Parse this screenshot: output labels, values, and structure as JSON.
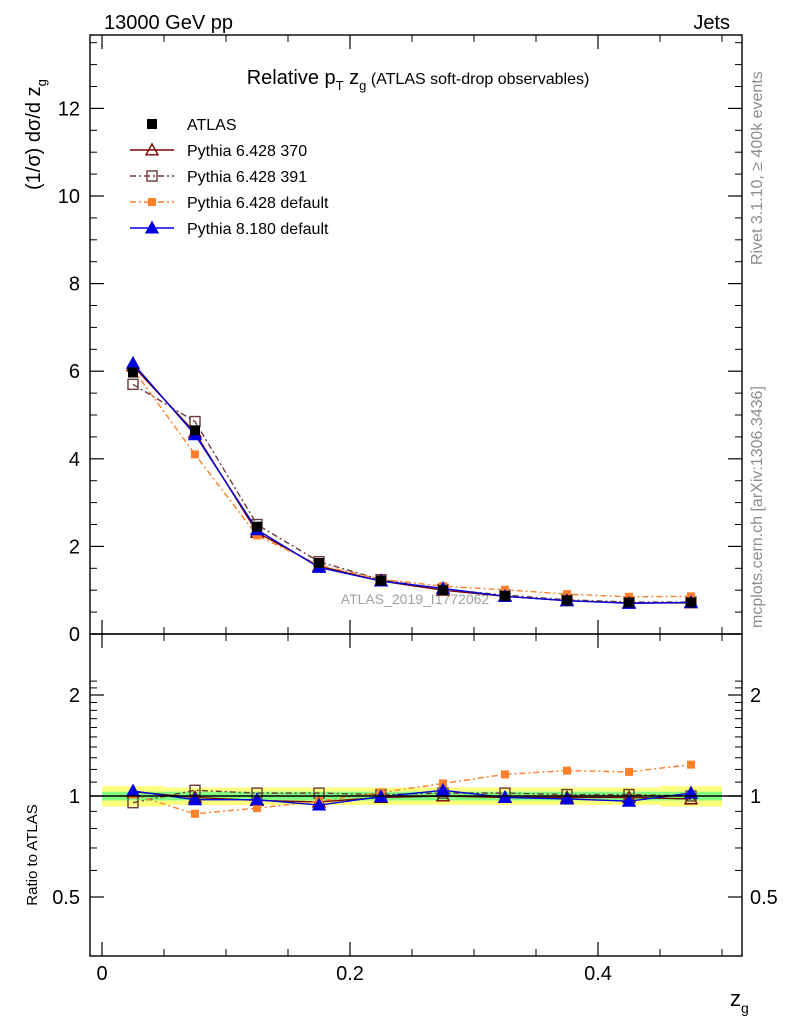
{
  "header": {
    "energy_label": "13000 GeV pp",
    "process_label": "Jets"
  },
  "side_text": {
    "rivet": "Rivet 3.1.10, ≥ 400k events",
    "mcplots": "mcplots.cern.ch [arXiv:1306.3436]"
  },
  "chart_data": {
    "type": "line",
    "title": "Relative pT zg (ATLAS soft-drop observables)",
    "title_parts": {
      "main": "Relative p",
      "sub_T": "T",
      "zg_z": " z",
      "zg_sub": "g",
      "tail": " (ATLAS soft-drop observables)"
    },
    "xlabel": "z",
    "xlabel_sub": "g",
    "ylabel": "(1/σ) dσ/d z",
    "ylabel_sub": "g",
    "ratio_ylabel": "Ratio to ATLAS",
    "analysis_tag": "ATLAS_2019_I1772062",
    "xlim": [
      0,
      0.5
    ],
    "ylim_main": [
      0,
      13.8
    ],
    "ylim_ratio": [
      0.5,
      2.3
    ],
    "ratio_log": true,
    "x_ticks": [
      "0",
      "0.2",
      "0.4"
    ],
    "y_ticks_main": [
      "0",
      "2",
      "4",
      "6",
      "8",
      "10",
      "12"
    ],
    "y_ticks_ratio": [
      "0.5",
      "1",
      "2"
    ],
    "x": [
      0.025,
      0.075,
      0.125,
      0.175,
      0.225,
      0.275,
      0.325,
      0.375,
      0.425,
      0.475
    ],
    "data": {
      "name": "ATLAS",
      "values": [
        5.97,
        4.65,
        2.45,
        1.62,
        1.22,
        1.0,
        0.87,
        0.77,
        0.72,
        0.72
      ],
      "ratio_band_inner": [
        0.03,
        0.03,
        0.03,
        0.03,
        0.03,
        0.03,
        0.03,
        0.03,
        0.03,
        0.03
      ],
      "ratio_band_outer": [
        0.07,
        0.06,
        0.06,
        0.06,
        0.06,
        0.06,
        0.06,
        0.06,
        0.06,
        0.07
      ]
    },
    "series": [
      {
        "name": "Pythia 6.428 370",
        "color": "#800000",
        "marker": "triangle-open",
        "dash": "",
        "values": [
          6.12,
          4.6,
          2.32,
          1.55,
          1.21,
          1.0,
          0.86,
          0.76,
          0.71,
          0.71
        ],
        "ratio": [
          1.03,
          0.99,
          0.97,
          0.96,
          0.99,
          1.0,
          0.99,
          0.99,
          0.99,
          0.98
        ]
      },
      {
        "name": "Pythia 6.428 391",
        "color": "#6b3a3a",
        "marker": "square-open",
        "dash": "6,3,2,3",
        "values": [
          5.7,
          4.85,
          2.5,
          1.65,
          1.24,
          1.02,
          0.89,
          0.78,
          0.73,
          0.73
        ],
        "ratio": [
          0.955,
          1.04,
          1.02,
          1.02,
          1.01,
          1.02,
          1.02,
          1.01,
          1.01,
          1.0
        ]
      },
      {
        "name": "Pythia 6.428 default",
        "color": "#ff7f2a",
        "marker": "square-filled",
        "dash": "6,3,2,3",
        "values": [
          6.05,
          4.1,
          2.25,
          1.57,
          1.25,
          1.09,
          1.01,
          0.91,
          0.85,
          0.86
        ],
        "ratio": [
          1.01,
          0.885,
          0.92,
          0.965,
          1.025,
          1.09,
          1.16,
          1.19,
          1.18,
          1.24
        ]
      },
      {
        "name": "Pythia 8.180 default",
        "color": "#0000e0",
        "marker": "triangle-filled",
        "dash": "",
        "values": [
          6.18,
          4.55,
          2.38,
          1.52,
          1.21,
          1.04,
          0.86,
          0.76,
          0.7,
          0.72
        ],
        "ratio": [
          1.035,
          0.975,
          0.975,
          0.94,
          0.995,
          1.04,
          0.99,
          0.98,
          0.965,
          1.02
        ]
      }
    ]
  }
}
